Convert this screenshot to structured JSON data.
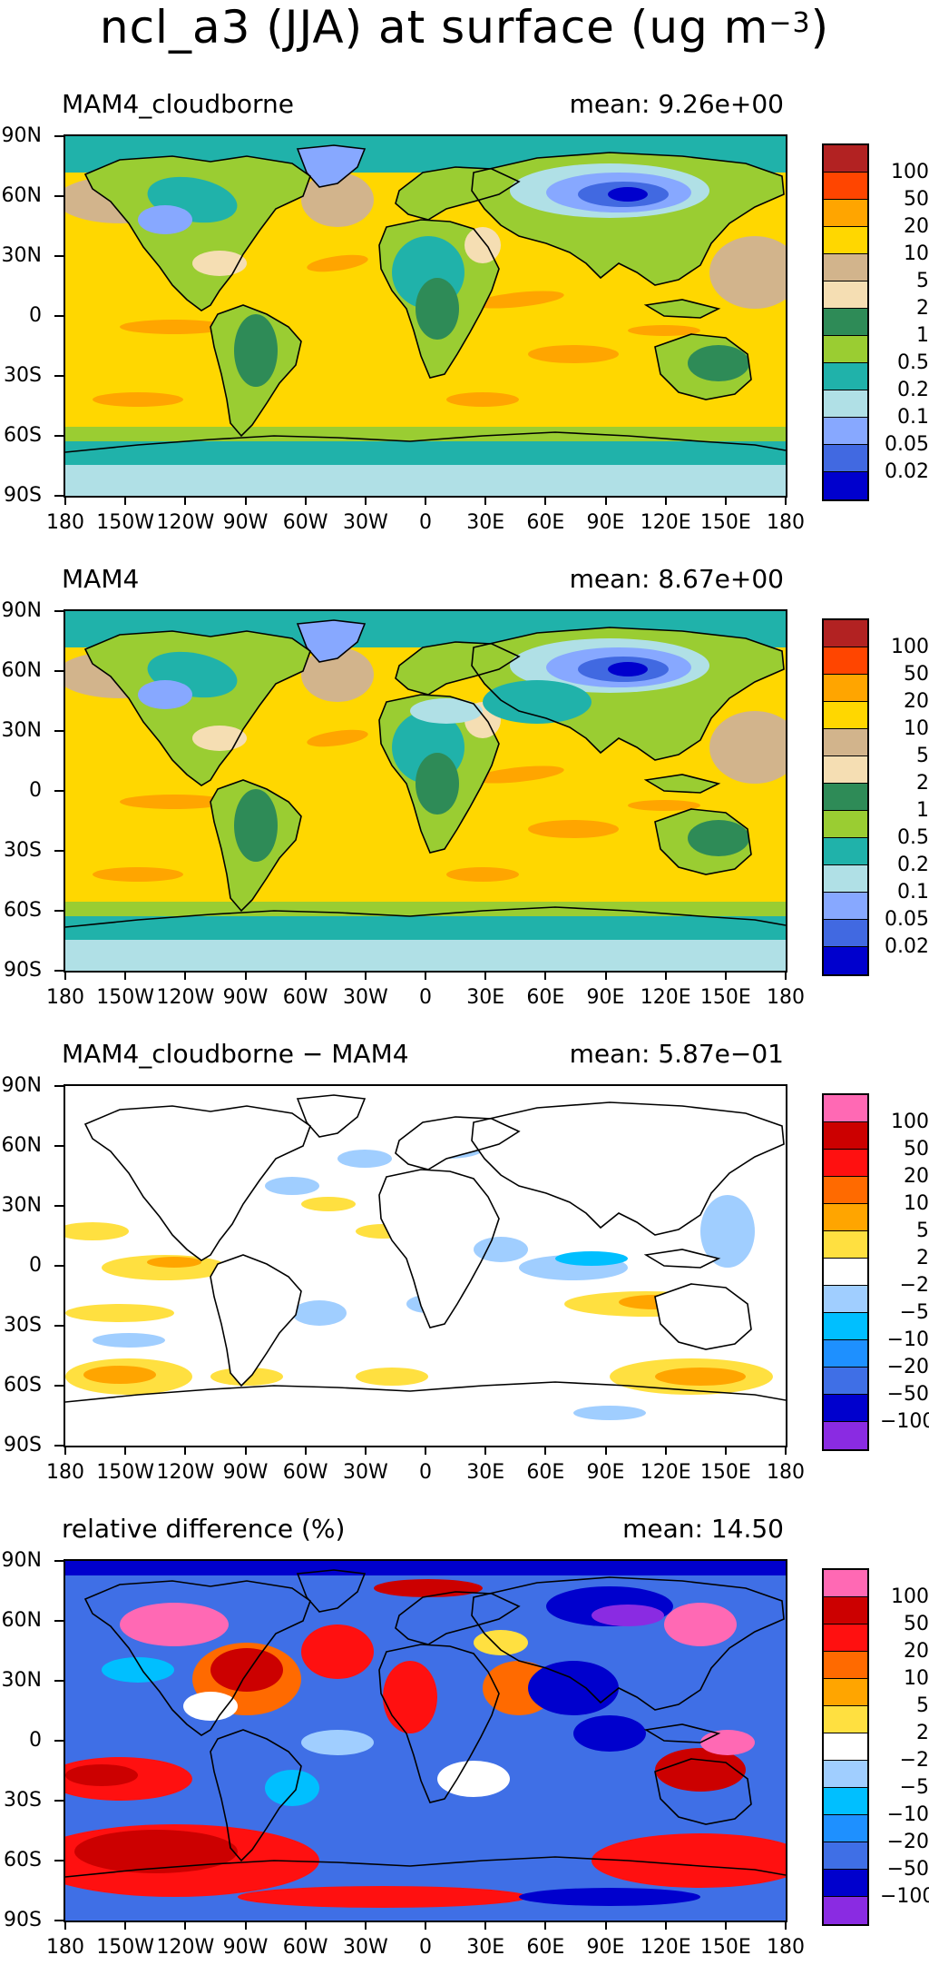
{
  "figure": {
    "title": "ncl_a3 (JJA) at surface (ug m",
    "title_exp": "−3",
    "title_close": ")"
  },
  "axes": {
    "lat_labels": [
      "90N",
      "60N",
      "30N",
      "0",
      "30S",
      "60S",
      "90S"
    ],
    "lon_labels": [
      "180",
      "150W",
      "120W",
      "90W",
      "60W",
      "30W",
      "0",
      "30E",
      "60E",
      "90E",
      "120E",
      "150E",
      "180"
    ]
  },
  "colors": {
    "abs_scale": [
      "#b22222",
      "#ff4500",
      "#ffa500",
      "#ffd700",
      "#d2b48c",
      "#f5deb3",
      "#2e8b57",
      "#9acd32",
      "#20b2aa",
      "#b0e0e6",
      "#87a8ff",
      "#4169e1",
      "#0000cd"
    ],
    "diff_scale": [
      "#ff69b4",
      "#cc0000",
      "#ff1010",
      "#ff6a00",
      "#ffa500",
      "#ffe040",
      "#ffffff",
      "#a0ceff",
      "#00bfff",
      "#1e90ff",
      "#3f6fe6",
      "#0000cd",
      "#8a2be2"
    ]
  },
  "panels": [
    {
      "title": "MAM4_cloudborne",
      "mean_label": "mean: 9.26e+00",
      "colorbar_labels": [
        "100",
        "50",
        "20",
        "10",
        "5",
        "2",
        "1",
        "0.5",
        "0.2",
        "0.1",
        "0.05",
        "0.02"
      ]
    },
    {
      "title": "MAM4",
      "mean_label": "mean: 8.67e+00",
      "colorbar_labels": [
        "100",
        "50",
        "20",
        "10",
        "5",
        "2",
        "1",
        "0.5",
        "0.2",
        "0.1",
        "0.05",
        "0.02"
      ]
    },
    {
      "title": "MAM4_cloudborne − MAM4",
      "mean_label": "mean: 5.87e−01",
      "colorbar_labels": [
        "100",
        "50",
        "20",
        "10",
        "5",
        "2",
        "−2",
        "−5",
        "−10",
        "−20",
        "−50",
        "−100"
      ]
    },
    {
      "title": "relative difference (%)",
      "mean_label": "mean: 14.50",
      "colorbar_labels": [
        "100",
        "50",
        "20",
        "10",
        "5",
        "2",
        "−2",
        "−5",
        "−10",
        "−20",
        "−50",
        "−100"
      ]
    }
  ]
}
